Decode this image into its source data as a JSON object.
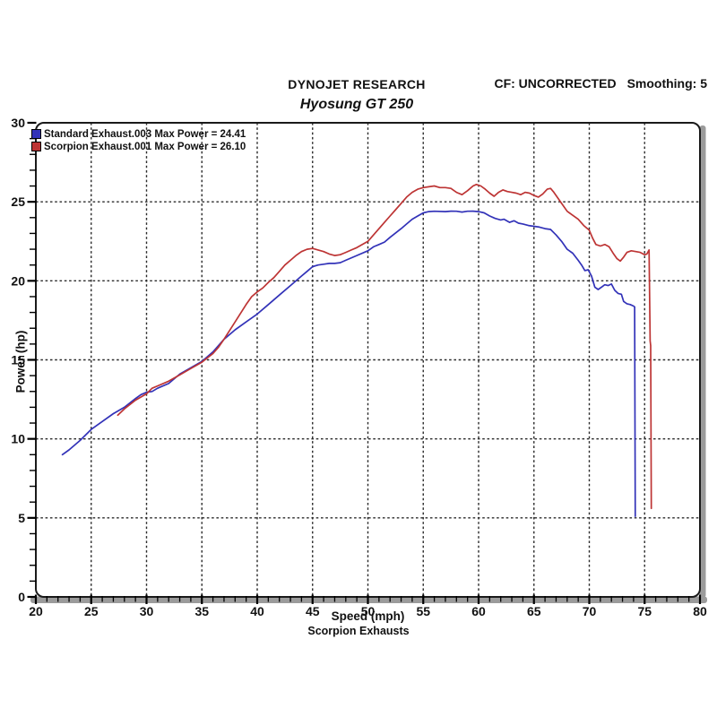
{
  "header": {
    "app_title": "DYNOJET RESEARCH",
    "chart_title": "Hyosung GT 250",
    "correction": "CF: UNCORRECTED",
    "smoothing": "Smoothing: 5"
  },
  "footer": {
    "caption": "Scorpion Exhausts"
  },
  "chart_data": {
    "type": "line",
    "title": "Hyosung GT 250",
    "xlabel": "Speed (mph)",
    "ylabel": "Power (hp)",
    "xlim": [
      20,
      80
    ],
    "ylim": [
      0,
      30
    ],
    "x_major_ticks": [
      20,
      25,
      30,
      35,
      40,
      45,
      50,
      55,
      60,
      65,
      70,
      75,
      80
    ],
    "y_major_ticks": [
      0,
      5,
      10,
      15,
      20,
      25,
      30
    ],
    "x_minor_step": 1,
    "y_minor_step": 1,
    "grid_x_lines": [
      25,
      30,
      35,
      40,
      45,
      50,
      55,
      60,
      65,
      70,
      75
    ],
    "grid_y_lines": [
      5,
      10,
      15,
      20,
      25
    ],
    "grid_style": "dashed",
    "legend_position": "top-left",
    "colors": {
      "grid": "#2b2b2b",
      "frame": "#1a1a1a",
      "axis_bar": "#9b9b9b",
      "text": "#111111"
    },
    "series": [
      {
        "name": "Standard Exhaust.003",
        "legend_label": "Standard Exhaust.003 Max Power = 24.41",
        "max_power": 24.41,
        "color": "#3232b8",
        "points": [
          [
            22.4,
            9.0
          ],
          [
            23,
            9.3
          ],
          [
            24,
            9.9
          ],
          [
            25,
            10.6
          ],
          [
            26,
            11.1
          ],
          [
            27,
            11.6
          ],
          [
            28,
            12.0
          ],
          [
            29,
            12.55
          ],
          [
            29.5,
            12.8
          ],
          [
            30,
            12.95
          ],
          [
            30.5,
            13.0
          ],
          [
            31,
            13.2
          ],
          [
            32,
            13.5
          ],
          [
            33,
            14.1
          ],
          [
            34,
            14.5
          ],
          [
            35,
            14.9
          ],
          [
            36,
            15.5
          ],
          [
            36.5,
            15.9
          ],
          [
            37,
            16.3
          ],
          [
            38,
            16.9
          ],
          [
            39,
            17.4
          ],
          [
            40,
            17.9
          ],
          [
            41,
            18.5
          ],
          [
            42,
            19.1
          ],
          [
            43,
            19.7
          ],
          [
            44,
            20.3
          ],
          [
            44.5,
            20.6
          ],
          [
            45,
            20.9
          ],
          [
            45.5,
            21.0
          ],
          [
            46,
            21.05
          ],
          [
            46.5,
            21.1
          ],
          [
            47,
            21.1
          ],
          [
            47.5,
            21.15
          ],
          [
            48,
            21.3
          ],
          [
            49,
            21.6
          ],
          [
            50,
            21.9
          ],
          [
            50.5,
            22.15
          ],
          [
            51,
            22.3
          ],
          [
            51.5,
            22.45
          ],
          [
            52,
            22.75
          ],
          [
            53,
            23.3
          ],
          [
            53.5,
            23.6
          ],
          [
            54,
            23.9
          ],
          [
            54.5,
            24.1
          ],
          [
            55,
            24.3
          ],
          [
            55.5,
            24.38
          ],
          [
            56,
            24.4
          ],
          [
            57,
            24.38
          ],
          [
            57.5,
            24.41
          ],
          [
            58,
            24.4
          ],
          [
            58.5,
            24.35
          ],
          [
            59,
            24.4
          ],
          [
            59.5,
            24.41
          ],
          [
            60,
            24.38
          ],
          [
            60.5,
            24.3
          ],
          [
            61,
            24.1
          ],
          [
            61.5,
            23.95
          ],
          [
            62,
            23.85
          ],
          [
            62.3,
            23.9
          ],
          [
            62.8,
            23.7
          ],
          [
            63.2,
            23.8
          ],
          [
            63.6,
            23.65
          ],
          [
            64,
            23.6
          ],
          [
            64.5,
            23.5
          ],
          [
            65,
            23.45
          ],
          [
            65.5,
            23.4
          ],
          [
            66,
            23.3
          ],
          [
            66.5,
            23.25
          ],
          [
            67,
            22.9
          ],
          [
            67.5,
            22.5
          ],
          [
            68,
            22.0
          ],
          [
            68.5,
            21.75
          ],
          [
            69,
            21.3
          ],
          [
            69.3,
            21.0
          ],
          [
            69.6,
            20.65
          ],
          [
            69.9,
            20.7
          ],
          [
            70.2,
            20.3
          ],
          [
            70.5,
            19.6
          ],
          [
            70.8,
            19.45
          ],
          [
            71.1,
            19.6
          ],
          [
            71.4,
            19.75
          ],
          [
            71.7,
            19.7
          ],
          [
            72,
            19.8
          ],
          [
            72.3,
            19.4
          ],
          [
            72.6,
            19.2
          ],
          [
            72.9,
            19.15
          ],
          [
            73.1,
            18.7
          ],
          [
            73.4,
            18.55
          ],
          [
            73.7,
            18.5
          ],
          [
            74,
            18.4
          ],
          [
            74.1,
            18.35
          ],
          [
            74.15,
            5.1
          ]
        ]
      },
      {
        "name": "Scorpion Exhaust.001",
        "legend_label": "Scorpion Exhaust.001 Max Power = 26.10",
        "max_power": 26.1,
        "color": "#bd3434",
        "points": [
          [
            27.4,
            11.5
          ],
          [
            28,
            11.9
          ],
          [
            29,
            12.45
          ],
          [
            30,
            12.85
          ],
          [
            30.5,
            13.2
          ],
          [
            31,
            13.35
          ],
          [
            32,
            13.65
          ],
          [
            33,
            14.05
          ],
          [
            34,
            14.45
          ],
          [
            35,
            14.85
          ],
          [
            36,
            15.4
          ],
          [
            36.5,
            15.8
          ],
          [
            37,
            16.3
          ],
          [
            38,
            17.4
          ],
          [
            39,
            18.5
          ],
          [
            39.5,
            19.0
          ],
          [
            40,
            19.3
          ],
          [
            40.5,
            19.55
          ],
          [
            41,
            19.9
          ],
          [
            41.5,
            20.2
          ],
          [
            42,
            20.6
          ],
          [
            42.5,
            21.0
          ],
          [
            43,
            21.3
          ],
          [
            43.5,
            21.6
          ],
          [
            44,
            21.85
          ],
          [
            44.5,
            22.0
          ],
          [
            45,
            22.05
          ],
          [
            45.5,
            21.95
          ],
          [
            46,
            21.85
          ],
          [
            46.5,
            21.7
          ],
          [
            47,
            21.6
          ],
          [
            47.5,
            21.65
          ],
          [
            48,
            21.8
          ],
          [
            48.5,
            21.95
          ],
          [
            49,
            22.1
          ],
          [
            49.5,
            22.3
          ],
          [
            50,
            22.5
          ],
          [
            50.5,
            22.9
          ],
          [
            51,
            23.3
          ],
          [
            51.5,
            23.7
          ],
          [
            52,
            24.1
          ],
          [
            52.5,
            24.5
          ],
          [
            53,
            24.9
          ],
          [
            53.5,
            25.3
          ],
          [
            54,
            25.6
          ],
          [
            54.5,
            25.8
          ],
          [
            55,
            25.9
          ],
          [
            55.5,
            25.95
          ],
          [
            56,
            26.0
          ],
          [
            56.5,
            25.9
          ],
          [
            57,
            25.9
          ],
          [
            57.5,
            25.85
          ],
          [
            58,
            25.6
          ],
          [
            58.5,
            25.45
          ],
          [
            59,
            25.7
          ],
          [
            59.5,
            26.0
          ],
          [
            59.8,
            26.1
          ],
          [
            60.2,
            26.0
          ],
          [
            60.6,
            25.8
          ],
          [
            61,
            25.55
          ],
          [
            61.4,
            25.35
          ],
          [
            61.8,
            25.6
          ],
          [
            62.2,
            25.75
          ],
          [
            62.6,
            25.65
          ],
          [
            63,
            25.6
          ],
          [
            63.4,
            25.55
          ],
          [
            63.8,
            25.45
          ],
          [
            64.2,
            25.6
          ],
          [
            64.6,
            25.55
          ],
          [
            65,
            25.4
          ],
          [
            65.4,
            25.3
          ],
          [
            65.8,
            25.5
          ],
          [
            66.2,
            25.8
          ],
          [
            66.5,
            25.85
          ],
          [
            66.8,
            25.6
          ],
          [
            67.2,
            25.2
          ],
          [
            67.6,
            24.8
          ],
          [
            68,
            24.4
          ],
          [
            68.5,
            24.15
          ],
          [
            69,
            23.9
          ],
          [
            69.5,
            23.5
          ],
          [
            70,
            23.2
          ],
          [
            70.3,
            22.7
          ],
          [
            70.6,
            22.3
          ],
          [
            71,
            22.2
          ],
          [
            71.4,
            22.3
          ],
          [
            71.8,
            22.15
          ],
          [
            72.2,
            21.7
          ],
          [
            72.5,
            21.4
          ],
          [
            72.8,
            21.25
          ],
          [
            73.1,
            21.5
          ],
          [
            73.4,
            21.8
          ],
          [
            73.8,
            21.9
          ],
          [
            74.2,
            21.85
          ],
          [
            74.6,
            21.8
          ],
          [
            75,
            21.65
          ],
          [
            75.2,
            21.7
          ],
          [
            75.4,
            21.95
          ],
          [
            75.5,
            16.2
          ],
          [
            75.55,
            15.9
          ],
          [
            75.6,
            5.6
          ]
        ]
      }
    ]
  }
}
